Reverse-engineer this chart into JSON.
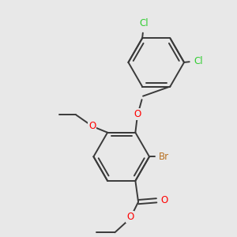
{
  "bg_color": "#e8e8e8",
  "bond_color": "#3a3a3a",
  "bond_width": 1.4,
  "atom_colors": {
    "Br": "#b87020",
    "O": "#ff0000",
    "Cl": "#32cd32"
  },
  "font_size": 8.5
}
